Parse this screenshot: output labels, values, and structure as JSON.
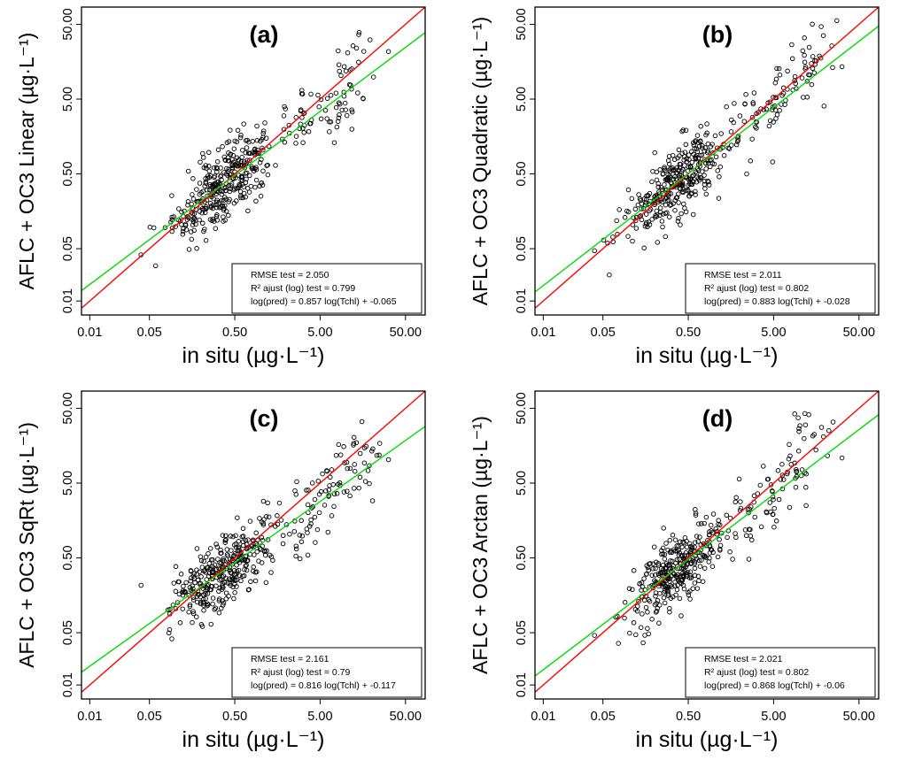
{
  "chart_data": [
    {
      "type": "scatter",
      "panel_label": "(a)",
      "xlabel": "in situ (µg·L⁻¹)",
      "ylabel": "AFLC + OC3 Linear (µg·L⁻¹)",
      "xscale": "log",
      "yscale": "log",
      "xlim": [
        0.008,
        85
      ],
      "ylim": [
        0.0065,
        85
      ],
      "xticks": [
        "0.01",
        "0.05",
        "0.50",
        "5.00",
        "50.00"
      ],
      "yticks": [
        "0.01",
        "0.05",
        "0.50",
        "5.00",
        "50.00"
      ],
      "grid": false,
      "stats_box": {
        "position": "bottom-right",
        "lines": [
          "RMSE test = 2.050",
          "R² ajust (log) test = 0.799",
          "log(pred) = 0.857 log(Tchl) + -0.065"
        ]
      },
      "lines": [
        {
          "name": "1:1",
          "color": "#ff0000",
          "slope": 1.0,
          "intercept": 0.0
        },
        {
          "name": "fit",
          "color": "#00dd00",
          "slope": 0.857,
          "intercept": -0.065
        }
      ],
      "points": {
        "n": 420,
        "seed": 11,
        "slope": 0.857,
        "intercept": -0.065,
        "marker": "open-circle"
      }
    },
    {
      "type": "scatter",
      "panel_label": "(b)",
      "xlabel": "in situ (µg·L⁻¹)",
      "ylabel": "AFLC + OC3 Quadratic (µg·L⁻¹)",
      "xscale": "log",
      "yscale": "log",
      "xlim": [
        0.008,
        85
      ],
      "ylim": [
        0.0065,
        85
      ],
      "xticks": [
        "0.01",
        "0.05",
        "0.50",
        "5.00",
        "50.00"
      ],
      "yticks": [
        "0.01",
        "0.05",
        "0.50",
        "5.00",
        "50.00"
      ],
      "grid": false,
      "stats_box": {
        "position": "bottom-right",
        "lines": [
          "RMSE test = 2.011",
          "R² ajust (log) test = 0.802",
          "log(pred) = 0.883 log(Tchl) + -0.028"
        ]
      },
      "lines": [
        {
          "name": "1:1",
          "color": "#ff0000",
          "slope": 1.0,
          "intercept": 0.0
        },
        {
          "name": "fit",
          "color": "#00dd00",
          "slope": 0.883,
          "intercept": -0.028
        }
      ],
      "points": {
        "n": 420,
        "seed": 23,
        "slope": 0.883,
        "intercept": -0.028,
        "marker": "open-circle"
      }
    },
    {
      "type": "scatter",
      "panel_label": "(c)",
      "xlabel": "in situ (µg·L⁻¹)",
      "ylabel": "AFLC + OC3 SqRt (µg·L⁻¹)",
      "xscale": "log",
      "yscale": "log",
      "xlim": [
        0.008,
        85
      ],
      "ylim": [
        0.0065,
        85
      ],
      "xticks": [
        "0.01",
        "0.05",
        "0.50",
        "5.00",
        "50.00"
      ],
      "yticks": [
        "0.01",
        "0.05",
        "0.50",
        "5.00",
        "50.00"
      ],
      "grid": false,
      "stats_box": {
        "position": "bottom-right",
        "lines": [
          "RMSE test = 2.161",
          "R² ajust (log) test = 0.79",
          "log(pred) = 0.816 log(Tchl) + -0.117"
        ]
      },
      "lines": [
        {
          "name": "1:1",
          "color": "#ff0000",
          "slope": 1.0,
          "intercept": 0.0
        },
        {
          "name": "fit",
          "color": "#00dd00",
          "slope": 0.816,
          "intercept": -0.117
        }
      ],
      "points": {
        "n": 420,
        "seed": 37,
        "slope": 0.816,
        "intercept": -0.117,
        "marker": "open-circle"
      }
    },
    {
      "type": "scatter",
      "panel_label": "(d)",
      "xlabel": "in situ (µg·L⁻¹)",
      "ylabel": "AFLC + OC3 Arctan (µg·L⁻¹)",
      "xscale": "log",
      "yscale": "log",
      "xlim": [
        0.008,
        85
      ],
      "ylim": [
        0.0065,
        85
      ],
      "xticks": [
        "0.01",
        "0.05",
        "0.50",
        "5.00",
        "50.00"
      ],
      "yticks": [
        "0.01",
        "0.05",
        "0.50",
        "5.00",
        "50.00"
      ],
      "grid": false,
      "stats_box": {
        "position": "bottom-right",
        "lines": [
          "RMSE test = 2.021",
          "R² ajust (log) test = 0.802",
          "log(pred) = 0.868 log(Tchl) + -0.06"
        ]
      },
      "lines": [
        {
          "name": "1:1",
          "color": "#ff0000",
          "slope": 1.0,
          "intercept": 0.0
        },
        {
          "name": "fit",
          "color": "#00dd00",
          "slope": 0.868,
          "intercept": -0.06
        }
      ],
      "points": {
        "n": 420,
        "seed": 53,
        "slope": 0.868,
        "intercept": -0.06,
        "marker": "open-circle"
      }
    }
  ]
}
